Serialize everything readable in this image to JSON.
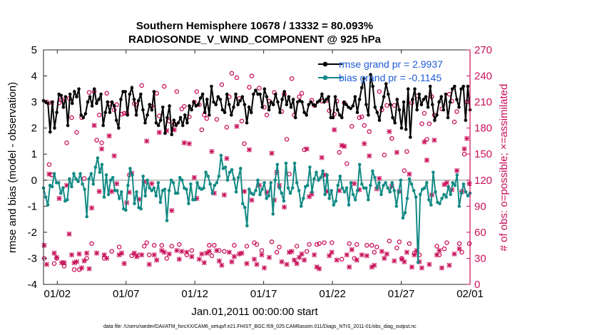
{
  "chart_data": {
    "type": "line",
    "title_line1": "Southern Hemisphere 10678 / 13332 = 80.093%",
    "title_line2": "RADIOSONDE_V_WIND_COMPONENT @ 925 hPa",
    "xlabel": "Jan.01,2011 00:00:00 start",
    "ylabel_left": "rmse and bias (model - observation)",
    "ylabel_right": "# of obs: o=possible; ×=assimilated",
    "xlim": [
      0,
      31
    ],
    "ylim_left": [
      -4,
      5
    ],
    "ylim_right": [
      0,
      270
    ],
    "x_ticks": [
      1,
      6,
      11,
      16,
      21,
      26,
      31
    ],
    "x_tick_labels": [
      "01/02",
      "01/07",
      "01/12",
      "01/17",
      "01/22",
      "01/27",
      "02/01"
    ],
    "y_ticks_left": [
      -4,
      -3,
      -2,
      -1,
      0,
      1,
      2,
      3,
      4,
      5
    ],
    "y_tick_labels_left": [
      "-4",
      "-3",
      "-2",
      "-1",
      "0",
      "1",
      "2",
      "3",
      "4",
      "5"
    ],
    "y_ticks_right": [
      0,
      30,
      60,
      90,
      120,
      150,
      180,
      210,
      240,
      270
    ],
    "y_tick_labels_right": [
      "0",
      "30",
      "60",
      "90",
      "120",
      "150",
      "180",
      "210",
      "240",
      "270"
    ],
    "grid": false,
    "legend_position": "top-right",
    "colors": {
      "rmse": "#000000",
      "bias": "#138a85",
      "obs": "#c8105a",
      "zero_line": "#b0b0b0",
      "legend_text": "#1f5bd6"
    },
    "series": [
      {
        "name": "rmse",
        "legend": "rmse grand pr = 2.9937",
        "values": [
          3.05,
          3.0,
          2.95,
          1.85,
          3.0,
          2.0,
          2.6,
          3.3,
          3.25,
          2.8,
          3.2,
          2.1,
          3.3,
          2.95,
          3.4,
          3.2,
          3.5,
          2.5,
          2.4,
          2.55,
          3.0,
          3.2,
          2.85,
          3.5,
          2.95,
          3.1,
          3.3,
          2.1,
          2.6,
          3.0,
          2.6,
          3.0,
          2.85,
          2.3,
          2.0,
          3.1,
          3.4,
          3.4,
          2.5,
          3.3,
          3.55,
          3.1,
          2.5,
          3.05,
          3.3,
          2.7,
          2.2,
          2.5,
          2.9,
          2.7,
          3.4,
          2.2,
          2.1,
          2.3,
          2.8,
          1.8,
          2.4,
          2.85,
          1.75,
          2.3,
          2.1,
          2.2,
          2.4,
          2.1,
          2.5,
          2.2,
          2.85,
          2.7,
          3.0,
          2.85,
          2.9,
          3.15,
          3.3,
          2.6,
          3.1,
          2.5,
          3.6,
          3.0,
          2.9,
          3.2,
          3.1,
          2.7,
          2.6,
          3.3,
          2.9,
          2.5,
          2.8,
          3.3,
          2.9,
          3.05,
          3.2,
          2.9,
          2.2,
          2.8,
          2.6,
          3.3,
          3.45,
          3.3,
          3.3,
          2.8,
          3.5,
          3.2,
          2.7,
          3.0,
          2.9,
          3.3,
          3.0,
          2.6,
          3.1,
          3.4,
          2.9,
          3.2,
          2.8,
          3.1,
          2.4,
          3.0,
          3.05,
          3.0,
          2.6,
          2.5,
          2.9,
          3.0,
          2.9,
          2.85,
          3.0,
          3.05,
          3.3,
          3.0,
          3.1,
          3.2,
          2.4,
          2.4,
          3.2,
          2.7,
          2.5,
          2.4,
          3.0,
          2.9,
          2.8,
          2.75,
          2.85,
          3.2,
          2.6,
          3.1,
          3.55,
          3.9,
          2.9,
          2.5,
          4.05,
          3.6,
          2.8,
          2.6,
          2.3,
          2.8,
          3.2,
          3.7,
          3.3,
          2.9,
          2.4,
          2.2,
          3.1,
          2.7,
          2.0,
          3.0,
          1.95,
          3.5,
          1.65,
          3.1,
          3.5,
          2.7,
          3.3,
          2.9,
          3.1,
          3.2,
          2.8,
          3.6,
          2.9,
          2.3,
          2.5,
          3.0,
          3.2,
          2.7,
          3.3,
          2.4,
          3.0,
          3.5,
          3.6,
          3.1,
          2.8,
          3.5,
          3.6,
          2.3,
          3.6,
          2.7
        ]
      },
      {
        "name": "bias",
        "legend": "bias grand pr = -0.1145",
        "values": [
          -0.3,
          -0.65,
          -0.95,
          -0.2,
          -0.25,
          0.25,
          -0.1,
          -0.1,
          -0.5,
          -0.3,
          -0.8,
          -0.75,
          0.05,
          -0.25,
          0.25,
          0.05,
          -0.05,
          0.25,
          -0.15,
          -0.35,
          -1.4,
          0.05,
          0.25,
          -0.15,
          0.5,
          0.85,
          0.3,
          0.6,
          -0.65,
          0.2,
          -0.55,
          0.0,
          0.1,
          -0.4,
          -0.4,
          -0.7,
          -0.45,
          -1.1,
          -1.15,
          -0.2,
          0.45,
          0.2,
          -0.9,
          -0.45,
          -1.05,
          -1.1,
          0.15,
          -0.6,
          0.0,
          -0.3,
          -0.4,
          -0.3,
          -0.6,
          -0.1,
          -0.85,
          -0.4,
          -0.35,
          -1.55,
          -0.4,
          0.0,
          -0.1,
          -0.5,
          -0.5,
          0.1,
          0.0,
          -0.3,
          -0.35,
          -0.9,
          -0.15,
          -0.75,
          -0.75,
          -0.1,
          -0.3,
          -0.35,
          -0.3,
          0.3,
          0.15,
          -0.15,
          -0.5,
          -0.2,
          -0.1,
          0.15,
          0.95,
          0.45,
          0.5,
          0.0,
          0.3,
          0.4,
          0.05,
          -0.45,
          0.1,
          0.45,
          -0.9,
          -1.05,
          -1.75,
          -0.35,
          -0.5,
          -0.55,
          -0.4,
          0.0,
          -0.55,
          -0.35,
          -0.1,
          -0.7,
          -0.6,
          -0.1,
          -1.3,
          0.0,
          0.6,
          -0.3,
          -0.5,
          -0.8,
          0.65,
          -0.3,
          -0.5,
          -0.3,
          0.65,
          -0.1,
          -0.4,
          -1.0,
          -0.7,
          -0.25,
          -0.2,
          0.5,
          -0.45,
          0.05,
          0.3,
          0.0,
          0.1,
          0.35,
          -0.55,
          0.2,
          -0.7,
          -0.4,
          -0.95,
          -0.8,
          -0.2,
          0.15,
          -0.3,
          -0.45,
          -0.3,
          -0.95,
          -0.1,
          -0.55,
          -0.75,
          -0.4,
          0.6,
          -0.15,
          -0.3,
          -0.3,
          -0.75,
          -0.2,
          0.35,
          0.1,
          -0.3,
          -0.1,
          -0.55,
          -0.2,
          -0.1,
          -0.3,
          -0.45,
          -0.1,
          -0.4,
          -1.0,
          -0.45,
          0.0,
          -1.45,
          -1.25,
          -0.7,
          0.05,
          -0.15,
          -0.4,
          -0.65,
          -3.15,
          -0.55,
          -0.35,
          -0.3,
          -0.1,
          -0.75,
          -0.95,
          0.3,
          -0.45,
          -0.85,
          -0.9,
          -0.7,
          -0.55,
          -0.65,
          -0.25,
          -0.55,
          -0.1,
          -0.2,
          0.2,
          -1.0,
          -0.5,
          -0.15,
          -0.45,
          -0.6,
          -0.5
        ]
      },
      {
        "name": "possible",
        "values": [
          30,
          210,
          138,
          126,
          24,
          30,
          209,
          213,
          21,
          163,
          214,
          192,
          17,
          175,
          17,
          192,
          122,
          30,
          221,
          47,
          222,
          166,
          195,
          163,
          30,
          220,
          208,
          38,
          201,
          207,
          43,
          196,
          197,
          197,
          126,
          33,
          208,
          207,
          34,
          229,
          44,
          48,
          34,
          205,
          45,
          220,
          194,
          45,
          228,
          30,
          188,
          44,
          185,
          222,
          46,
          202,
          205,
          34,
          193,
          39,
          210,
          222,
          207,
          178,
          195,
          191,
          45,
          33,
          45,
          190,
          39,
          230,
          38,
          181,
          216,
          243,
          45,
          238,
          214,
          188,
          162,
          44,
          227,
          240,
          48,
          46,
          226,
          39,
          204,
          195,
          211,
          49,
          221,
          37,
          43,
          199,
          219,
          167,
          127,
          237,
          195,
          44,
          216,
          220,
          155,
          38,
          46,
          212,
          206,
          46,
          47,
          211,
          48,
          212,
          200,
          48,
          196,
          211,
          152,
          29,
          209,
          139,
          47,
          182,
          30,
          46,
          192,
          193,
          183,
          45,
          176,
          45,
          37,
          43,
          222,
          201,
          149,
          206,
          50,
          168,
          206,
          42,
          49,
          30,
          131,
          153,
          47,
          209,
          36,
          217,
          34,
          185,
          197,
          167,
          185,
          216,
          195,
          44,
          34,
          202,
          41,
          48,
          219,
          211,
          187,
          199,
          47,
          37,
          150,
          210,
          47
        ]
      },
      {
        "name": "assimilated",
        "values": [
          45,
          23,
          127,
          209,
          36,
          31,
          99,
          25,
          25,
          114,
          58,
          34,
          25,
          26,
          35,
          19,
          27,
          36,
          18,
          88,
          183,
          36,
          107,
          156,
          34,
          30,
          171,
          107,
          148,
          116,
          34,
          36,
          24,
          94,
          106,
          128,
          36,
          32,
          98,
          34,
          118,
          165,
          23,
          116,
          34,
          28,
          175,
          39,
          37,
          177,
          35,
          85,
          178,
          39,
          29,
          38,
          163,
          37,
          162,
          32,
          123,
          99,
          29,
          35,
          25,
          36,
          38,
          153,
          105,
          39,
          27,
          22,
          103,
          145,
          37,
          26,
          32,
          182,
          35,
          36,
          107,
          24,
          155,
          97,
          29,
          23,
          114,
          34,
          19,
          106,
          31,
          151,
          97,
          129,
          114,
          26,
          89,
          23,
          37,
          38,
          28,
          24,
          31,
          35,
          28,
          156,
          101,
          104,
          34,
          20,
          18,
          146,
          126,
          107,
          33,
          37,
          178,
          28,
          108,
          160,
          159,
          34,
          20,
          40,
          116,
          28,
          109,
          34,
          162,
          33,
          148,
          20,
          22,
          110,
          122,
          38,
          30,
          35,
          176,
          113,
          27,
          152,
          107,
          29,
          26,
          37,
          127,
          20,
          34,
          39,
          26,
          19,
          164,
          143,
          23,
          103,
          166,
          34,
          39,
          19,
          115,
          117,
          22,
          109,
          35,
          131,
          41,
          107,
          156,
          168,
          116
        ]
      }
    ]
  },
  "footer": {
    "data_file": "data file: /Users/raeder/DAI/ATM_forcXX/CAM6_setup/f.e21.FHIST_BGC.f09_025.CAM6assim.011/Diags_NTrS_2011-01/obs_diag_output.nc"
  }
}
